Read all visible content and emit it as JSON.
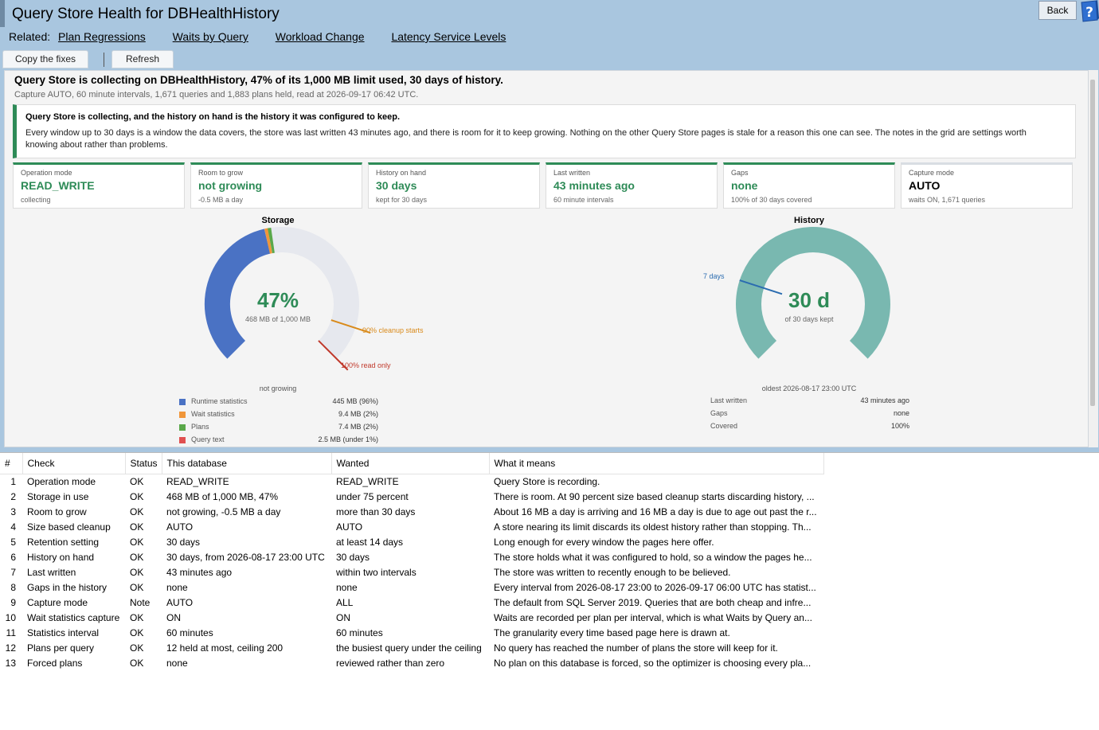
{
  "header": {
    "title": "Query Store Health for DBHealthHistory",
    "back_label": "Back",
    "related_label": "Related:",
    "related_links": [
      "Plan Regressions",
      "Waits by Query",
      "Workload Change",
      "Latency Service Levels"
    ],
    "toolbar": {
      "copy_label": "Copy the fixes",
      "refresh_label": "Refresh"
    }
  },
  "summary": {
    "headline": "Query Store is collecting on DBHealthHistory, 47% of its 1,000 MB limit used, 30 days of history.",
    "subline": "Capture AUTO, 60 minute intervals, 1,671 queries and 1,883 plans held, read at 2026-09-17 06:42 UTC."
  },
  "notice": {
    "title": "Query Store is collecting, and the history on hand is the history it was configured to keep.",
    "body": "Every window up to 30 days is a window the data covers, the store was last written 43 minutes ago, and there is room for it to keep growing. Nothing on the other Query Store pages is stale for a reason this one can see. The notes in the grid are settings worth knowing about rather than problems."
  },
  "cards": [
    {
      "label": "Operation mode",
      "value": "READ_WRITE",
      "sub": "collecting"
    },
    {
      "label": "Room to grow",
      "value": "not growing",
      "sub": "-0.5 MB a day"
    },
    {
      "label": "History on hand",
      "value": "30 days",
      "sub": "kept for 30 days"
    },
    {
      "label": "Last written",
      "value": "43 minutes ago",
      "sub": "60 minute intervals"
    },
    {
      "label": "Gaps",
      "value": "none",
      "sub": "100% of 30 days covered"
    },
    {
      "label": "Capture mode",
      "value": "AUTO",
      "sub": "waits ON, 1,671 queries"
    }
  ],
  "storage": {
    "title": "Storage",
    "percent_label": "47%",
    "percent": 47,
    "caption": "468 MB of 1,000 MB",
    "cleanup_label": "90% cleanup starts",
    "readonly_label": "100% read only",
    "growth_label": "not growing",
    "legend": [
      {
        "name": "Runtime statistics",
        "value": "445 MB (96%)",
        "color": "#4a72c4"
      },
      {
        "name": "Wait statistics",
        "value": "9.4 MB (2%)",
        "color": "#f0963a"
      },
      {
        "name": "Plans",
        "value": "7.4 MB (2%)",
        "color": "#5aa84a"
      },
      {
        "name": "Query text",
        "value": "2.5 MB (under 1%)",
        "color": "#e05050"
      }
    ],
    "colors": {
      "used": "#4a72c4",
      "track": "#e6e8ee",
      "cleanup": "#d98a1a",
      "readonly": "#c0392b",
      "accent": "#2e8b57"
    }
  },
  "history": {
    "title": "History",
    "value_label": "30 d",
    "caption": "of 30 days kept",
    "marker_label": "7 days",
    "oldest_label": "oldest 2026-08-17 23:00 UTC",
    "rows": [
      {
        "label": "Last written",
        "value": "43 minutes ago"
      },
      {
        "label": "Gaps",
        "value": "none"
      },
      {
        "label": "Covered",
        "value": "100%"
      }
    ],
    "colors": {
      "fill": "#79b8b0",
      "marker": "#2b6cb0"
    }
  },
  "grid": {
    "columns": [
      "#",
      "Check",
      "Status",
      "This database",
      "Wanted",
      "What it means"
    ],
    "rows": [
      [
        "1",
        "Operation mode",
        "OK",
        "READ_WRITE",
        "READ_WRITE",
        "Query Store is recording."
      ],
      [
        "2",
        "Storage in use",
        "OK",
        "468 MB of 1,000 MB, 47%",
        "under 75 percent",
        "There is room. At 90 percent size based cleanup starts discarding history, ..."
      ],
      [
        "3",
        "Room to grow",
        "OK",
        "not growing, -0.5 MB a day",
        "more than 30 days",
        "About 16 MB a day is arriving and 16 MB a day is due to age out past the r..."
      ],
      [
        "4",
        "Size based cleanup",
        "OK",
        "AUTO",
        "AUTO",
        "A store nearing its limit discards its oldest history rather than stopping. Th..."
      ],
      [
        "5",
        "Retention setting",
        "OK",
        "30 days",
        "at least 14 days",
        "Long enough for every window the pages here offer."
      ],
      [
        "6",
        "History on hand",
        "OK",
        "30 days, from 2026-08-17 23:00 UTC",
        "30 days",
        "The store holds what it was configured to hold, so a window the pages he..."
      ],
      [
        "7",
        "Last written",
        "OK",
        "43 minutes ago",
        "within two intervals",
        "The store was written to recently enough to be believed."
      ],
      [
        "8",
        "Gaps in the history",
        "OK",
        "none",
        "none",
        "Every interval from 2026-08-17 23:00 to 2026-09-17 06:00 UTC has statist..."
      ],
      [
        "9",
        "Capture mode",
        "Note",
        "AUTO",
        "ALL",
        "The default from SQL Server 2019. Queries that are both cheap and infre..."
      ],
      [
        "10",
        "Wait statistics capture",
        "OK",
        "ON",
        "ON",
        "Waits are recorded per plan per interval, which is what Waits by Query an..."
      ],
      [
        "11",
        "Statistics interval",
        "OK",
        "60 minutes",
        "60 minutes",
        "The granularity every time based page here is drawn at."
      ],
      [
        "12",
        "Plans per query",
        "OK",
        "12 held at most, ceiling 200",
        "the busiest query under the ceiling",
        "No query has reached the number of plans the store will keep for it."
      ],
      [
        "13",
        "Forced plans",
        "OK",
        "none",
        "reviewed rather than zero",
        "No plan on this database is forced, so the optimizer is choosing every pla..."
      ]
    ]
  }
}
